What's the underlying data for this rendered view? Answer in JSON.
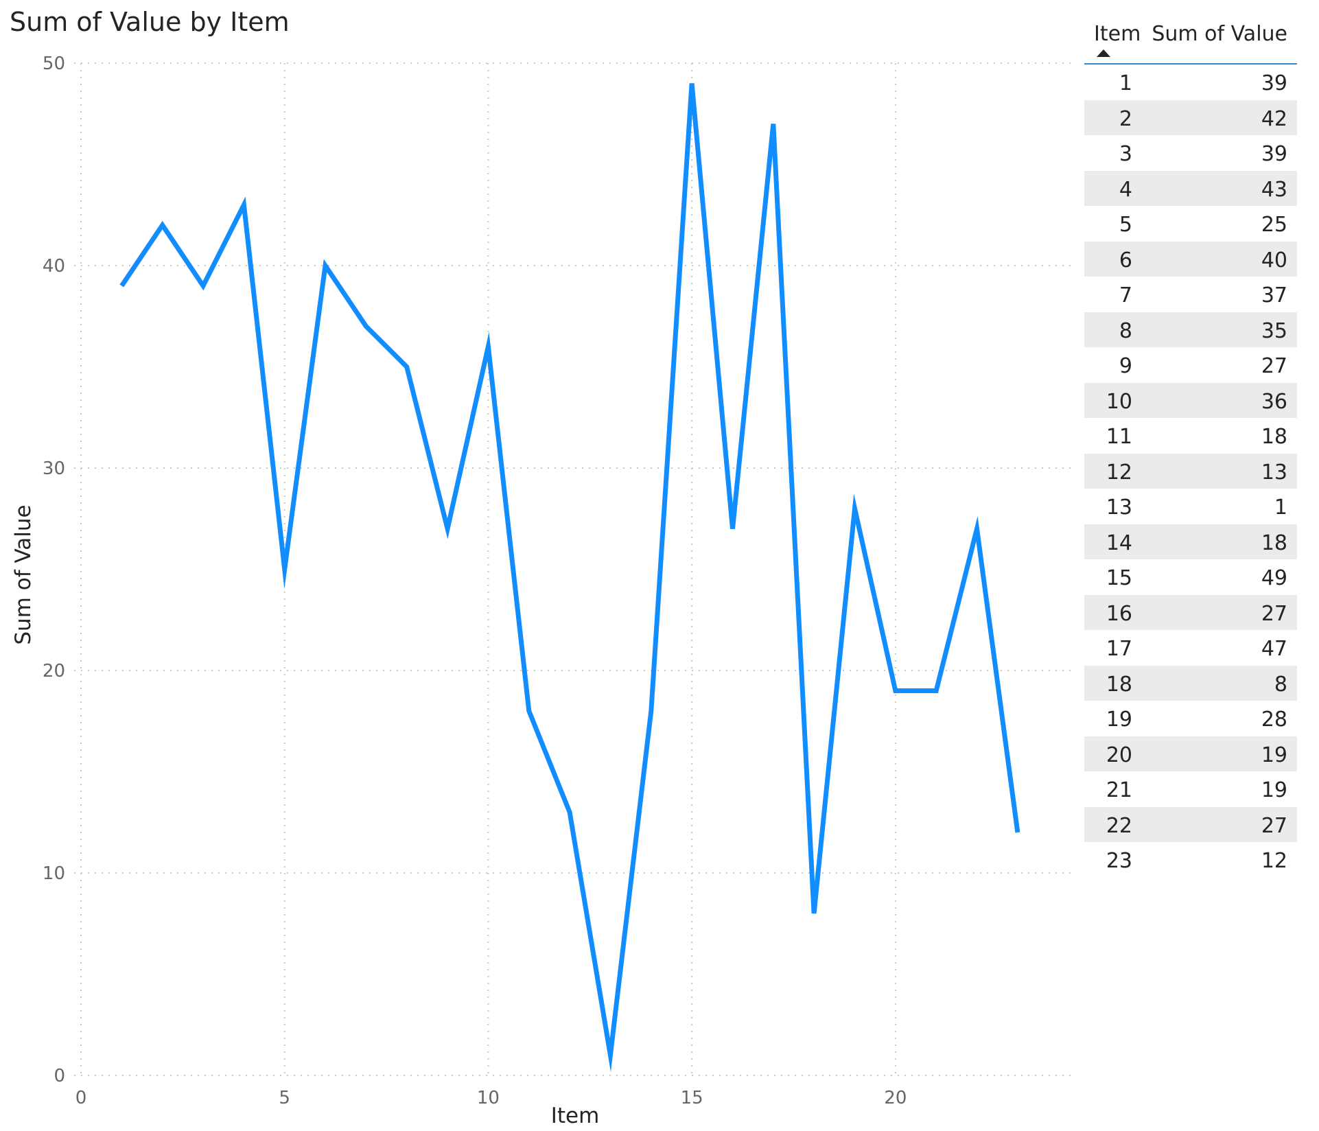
{
  "chart_data": {
    "type": "line",
    "title": "Sum of Value by Item",
    "xlabel": "Item",
    "ylabel": "Sum of Value",
    "x": [
      1,
      2,
      3,
      4,
      5,
      6,
      7,
      8,
      9,
      10,
      11,
      12,
      13,
      14,
      15,
      16,
      17,
      18,
      19,
      20,
      21,
      22,
      23
    ],
    "series": [
      {
        "values": [
          39,
          42,
          39,
          43,
          25,
          40,
          37,
          35,
          27,
          36,
          18,
          13,
          1,
          18,
          49,
          27,
          47,
          8,
          28,
          19,
          19,
          27,
          12
        ]
      }
    ],
    "xlim": [
      0,
      24.3
    ],
    "ylim": [
      0,
      50
    ],
    "xticks": [
      0,
      5,
      10,
      15,
      20
    ],
    "yticks": [
      0,
      10,
      20,
      30,
      40,
      50
    ],
    "grid": true,
    "color": "#118dff"
  },
  "table": {
    "columns": [
      "Item",
      "Sum of Value"
    ],
    "sort": "ascending",
    "rows": [
      [
        "1",
        "39"
      ],
      [
        "2",
        "42"
      ],
      [
        "3",
        "39"
      ],
      [
        "4",
        "43"
      ],
      [
        "5",
        "25"
      ],
      [
        "6",
        "40"
      ],
      [
        "7",
        "37"
      ],
      [
        "8",
        "35"
      ],
      [
        "9",
        "27"
      ],
      [
        "10",
        "36"
      ],
      [
        "11",
        "18"
      ],
      [
        "12",
        "13"
      ],
      [
        "13",
        "1"
      ],
      [
        "14",
        "18"
      ],
      [
        "15",
        "49"
      ],
      [
        "16",
        "27"
      ],
      [
        "17",
        "47"
      ],
      [
        "18",
        "8"
      ],
      [
        "19",
        "28"
      ],
      [
        "20",
        "19"
      ],
      [
        "21",
        "19"
      ],
      [
        "22",
        "27"
      ],
      [
        "23",
        "12"
      ]
    ]
  }
}
